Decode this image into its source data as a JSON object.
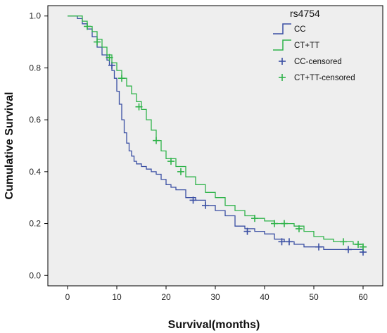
{
  "chart_data": {
    "type": "line",
    "xlabel": "Survival(months)",
    "ylabel": "Cumulative Survival",
    "xlim": [
      -4,
      64
    ],
    "ylim": [
      -0.04,
      1.04
    ],
    "xticks": [
      0,
      10,
      20,
      30,
      40,
      50,
      60
    ],
    "xtick_labels": [
      "0",
      "10",
      "20",
      "30",
      "40",
      "50",
      "60"
    ],
    "yticks": [
      0.0,
      0.2,
      0.4,
      0.6,
      0.8,
      1.0
    ],
    "ytick_labels": [
      "0.0",
      "0.2",
      "0.4",
      "0.6",
      "0.8",
      "1.0"
    ],
    "grid": false,
    "background": "#eeeeee",
    "legend": {
      "title": "rs4754",
      "placement": "top-right",
      "entries": [
        {
          "label": "CC",
          "kind": "step",
          "color": "#3a4fa3"
        },
        {
          "label": "CT+TT",
          "kind": "step",
          "color": "#2fb34a"
        },
        {
          "label": "CC-censored",
          "kind": "censor",
          "color": "#3a4fa3"
        },
        {
          "label": "CT+TT-censored",
          "kind": "censor",
          "color": "#2fb34a"
        }
      ]
    },
    "series": [
      {
        "name": "CC",
        "color": "#3a4fa3",
        "x": [
          0,
          2,
          3,
          4,
          5,
          6,
          7,
          8,
          8.5,
          9,
          9.5,
          10,
          10.5,
          11,
          11.5,
          12,
          12.5,
          13,
          13.5,
          14,
          15,
          16,
          17,
          18,
          19,
          20,
          21,
          22,
          24,
          26,
          28,
          30,
          32,
          34,
          36,
          38,
          40,
          42,
          44,
          46,
          48,
          50,
          52,
          56,
          60
        ],
        "y": [
          1.0,
          0.99,
          0.97,
          0.95,
          0.92,
          0.88,
          0.85,
          0.83,
          0.81,
          0.79,
          0.76,
          0.71,
          0.66,
          0.6,
          0.55,
          0.51,
          0.48,
          0.46,
          0.44,
          0.43,
          0.42,
          0.41,
          0.4,
          0.39,
          0.37,
          0.35,
          0.34,
          0.33,
          0.3,
          0.29,
          0.27,
          0.25,
          0.23,
          0.19,
          0.18,
          0.17,
          0.16,
          0.14,
          0.13,
          0.12,
          0.11,
          0.11,
          0.1,
          0.1,
          0.09
        ],
        "censored": [
          {
            "x": 9,
            "y": 0.81
          },
          {
            "x": 25.5,
            "y": 0.29
          },
          {
            "x": 28,
            "y": 0.27
          },
          {
            "x": 36.5,
            "y": 0.17
          },
          {
            "x": 43.5,
            "y": 0.13
          },
          {
            "x": 45,
            "y": 0.13
          },
          {
            "x": 51,
            "y": 0.11
          },
          {
            "x": 57,
            "y": 0.1
          },
          {
            "x": 60,
            "y": 0.09
          }
        ]
      },
      {
        "name": "CT+TT",
        "color": "#2fb34a",
        "x": [
          0,
          2,
          3,
          4,
          5,
          6,
          7,
          8,
          9,
          10,
          11,
          12,
          13,
          14,
          15,
          16,
          17,
          18,
          19,
          20,
          22,
          24,
          26,
          28,
          30,
          32,
          34,
          36,
          38,
          40,
          42,
          44,
          46,
          48,
          50,
          52,
          54,
          56,
          58,
          60
        ],
        "y": [
          1.0,
          1.0,
          0.98,
          0.96,
          0.94,
          0.91,
          0.88,
          0.85,
          0.82,
          0.79,
          0.76,
          0.73,
          0.7,
          0.67,
          0.64,
          0.6,
          0.56,
          0.52,
          0.48,
          0.45,
          0.42,
          0.38,
          0.35,
          0.32,
          0.3,
          0.27,
          0.25,
          0.23,
          0.22,
          0.21,
          0.2,
          0.2,
          0.19,
          0.17,
          0.15,
          0.14,
          0.13,
          0.13,
          0.12,
          0.11
        ],
        "censored": [
          {
            "x": 4,
            "y": 0.96
          },
          {
            "x": 6,
            "y": 0.9
          },
          {
            "x": 8.5,
            "y": 0.84
          },
          {
            "x": 11,
            "y": 0.76
          },
          {
            "x": 14.5,
            "y": 0.65
          },
          {
            "x": 18,
            "y": 0.52
          },
          {
            "x": 21,
            "y": 0.44
          },
          {
            "x": 23,
            "y": 0.4
          },
          {
            "x": 38,
            "y": 0.22
          },
          {
            "x": 42,
            "y": 0.2
          },
          {
            "x": 44,
            "y": 0.2
          },
          {
            "x": 47,
            "y": 0.18
          },
          {
            "x": 56,
            "y": 0.13
          },
          {
            "x": 59,
            "y": 0.12
          },
          {
            "x": 60,
            "y": 0.11
          }
        ]
      }
    ]
  }
}
